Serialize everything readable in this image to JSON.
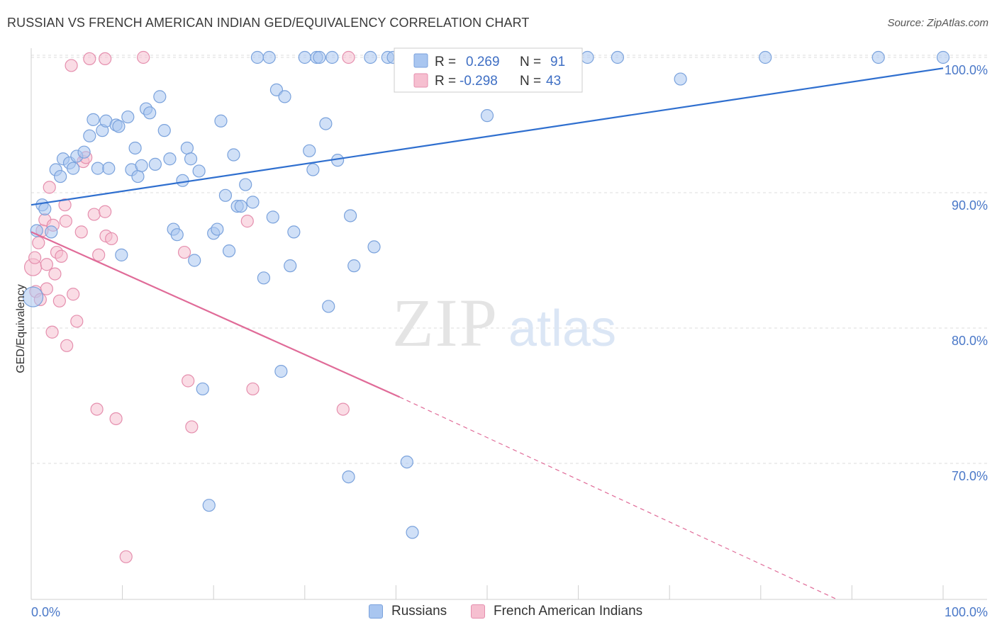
{
  "title": "RUSSIAN VS FRENCH AMERICAN INDIAN GED/EQUIVALENCY CORRELATION CHART",
  "source": "Source: ZipAtlas.com",
  "watermark": {
    "zip": "ZIP",
    "atlas": "atlas"
  },
  "colors": {
    "blue_fill": "#a9c6f0",
    "blue_stroke": "#7aa2dc",
    "blue_line": "#2f6fcf",
    "pink_fill": "#f6bfd0",
    "pink_stroke": "#e58fae",
    "pink_line": "#e06b98",
    "grid": "#dddddd",
    "axis_text": "#4a78c8"
  },
  "legend": {
    "rows": [
      {
        "r_label": "R =",
        "r_value": "0.269",
        "n_label": "N =",
        "n_value": "91"
      },
      {
        "r_label": "R =",
        "r_value": "-0.298",
        "n_label": "N =",
        "n_value": "43"
      }
    ]
  },
  "bottom_legend": [
    {
      "label": "Russians"
    },
    {
      "label": "French American Indians"
    }
  ],
  "chart_data": {
    "type": "scatter",
    "title": "RUSSIAN VS FRENCH AMERICAN INDIAN GED/EQUIVALENCY CORRELATION CHART",
    "xlabel": "",
    "ylabel": "GED/Equivalency",
    "xlim": [
      0,
      100
    ],
    "ylim": [
      59.5,
      101.5
    ],
    "x_tick_labels": [
      "0.0%",
      "100.0%"
    ],
    "y_ticks": [
      70,
      80,
      90,
      100
    ],
    "y_tick_labels": [
      "70.0%",
      "80.0%",
      "90.0%",
      "100.0%"
    ],
    "grid": true,
    "legend_position": "top-center",
    "series": [
      {
        "name": "Russians",
        "color": "#a9c6f0",
        "r": 0.269,
        "n": 91,
        "trend": {
          "x": [
            0,
            100
          ],
          "y": [
            89.1,
            99.2
          ],
          "dashed_from": null
        },
        "points": [
          [
            0.2,
            82.3
          ],
          [
            0.6,
            87.2
          ],
          [
            1.2,
            89.1
          ],
          [
            1.5,
            88.8
          ],
          [
            2.2,
            87.1
          ],
          [
            2.7,
            91.7
          ],
          [
            3.2,
            91.2
          ],
          [
            3.5,
            92.5
          ],
          [
            4.2,
            92.2
          ],
          [
            4.6,
            91.8
          ],
          [
            5.0,
            92.7
          ],
          [
            5.8,
            93.0
          ],
          [
            6.4,
            94.2
          ],
          [
            6.8,
            95.4
          ],
          [
            7.3,
            91.8
          ],
          [
            7.8,
            94.6
          ],
          [
            8.2,
            95.3
          ],
          [
            8.5,
            91.8
          ],
          [
            9.3,
            95.0
          ],
          [
            9.6,
            94.9
          ],
          [
            9.9,
            85.4
          ],
          [
            10.6,
            95.6
          ],
          [
            11.0,
            91.7
          ],
          [
            11.4,
            93.3
          ],
          [
            11.7,
            91.2
          ],
          [
            12.1,
            92.0
          ],
          [
            12.6,
            96.2
          ],
          [
            13.0,
            95.9
          ],
          [
            13.6,
            92.1
          ],
          [
            14.1,
            97.1
          ],
          [
            14.6,
            94.6
          ],
          [
            15.2,
            92.5
          ],
          [
            15.6,
            87.3
          ],
          [
            16.0,
            86.9
          ],
          [
            16.6,
            90.9
          ],
          [
            17.1,
            93.3
          ],
          [
            17.5,
            92.5
          ],
          [
            17.9,
            85.0
          ],
          [
            18.4,
            91.6
          ],
          [
            18.8,
            75.5
          ],
          [
            19.5,
            66.9
          ],
          [
            20.0,
            87.0
          ],
          [
            20.4,
            87.3
          ],
          [
            20.8,
            95.3
          ],
          [
            21.3,
            89.8
          ],
          [
            21.7,
            85.7
          ],
          [
            22.2,
            92.8
          ],
          [
            22.6,
            89.0
          ],
          [
            23.0,
            89.0
          ],
          [
            23.5,
            90.6
          ],
          [
            24.3,
            89.3
          ],
          [
            24.8,
            100.0
          ],
          [
            25.5,
            83.7
          ],
          [
            26.1,
            100.0
          ],
          [
            26.5,
            88.2
          ],
          [
            26.9,
            97.6
          ],
          [
            27.4,
            76.8
          ],
          [
            27.8,
            97.1
          ],
          [
            28.4,
            84.6
          ],
          [
            28.8,
            87.1
          ],
          [
            30.0,
            100.0
          ],
          [
            30.5,
            93.1
          ],
          [
            30.9,
            91.7
          ],
          [
            31.3,
            100.0
          ],
          [
            31.6,
            100.0
          ],
          [
            32.3,
            95.1
          ],
          [
            32.6,
            81.6
          ],
          [
            33.0,
            100.0
          ],
          [
            33.6,
            92.4
          ],
          [
            34.8,
            69.0
          ],
          [
            35.0,
            88.3
          ],
          [
            35.4,
            84.6
          ],
          [
            37.2,
            100.0
          ],
          [
            37.6,
            86.0
          ],
          [
            39.1,
            100.0
          ],
          [
            39.7,
            100.0
          ],
          [
            40.8,
            100.0
          ],
          [
            41.2,
            70.1
          ],
          [
            41.8,
            64.9
          ],
          [
            47.6,
            100.0
          ],
          [
            50.0,
            95.7
          ],
          [
            50.5,
            100.0
          ],
          [
            51.0,
            100.0
          ],
          [
            51.8,
            100.0
          ],
          [
            55.8,
            100.0
          ],
          [
            61.0,
            100.0
          ],
          [
            64.3,
            100.0
          ],
          [
            71.2,
            98.4
          ],
          [
            80.5,
            100.0
          ],
          [
            92.9,
            100.0
          ],
          [
            100.0,
            100.0
          ]
        ]
      },
      {
        "name": "French American Indians",
        "color": "#f6bfd0",
        "r": -0.298,
        "n": 43,
        "trend": {
          "x": [
            0,
            40.4,
            88.2
          ],
          "y": [
            87.1,
            74.9,
            60.0
          ],
          "dashed_from": 40.4
        },
        "points": [
          [
            0.2,
            84.5
          ],
          [
            0.4,
            85.2
          ],
          [
            0.5,
            82.7
          ],
          [
            0.8,
            86.3
          ],
          [
            1.0,
            82.1
          ],
          [
            1.2,
            87.2
          ],
          [
            1.5,
            88.0
          ],
          [
            1.7,
            82.9
          ],
          [
            1.7,
            84.7
          ],
          [
            2.0,
            90.4
          ],
          [
            2.3,
            79.7
          ],
          [
            2.4,
            87.6
          ],
          [
            2.6,
            84.0
          ],
          [
            2.8,
            85.6
          ],
          [
            3.1,
            82.0
          ],
          [
            3.3,
            85.3
          ],
          [
            3.7,
            89.1
          ],
          [
            3.8,
            87.9
          ],
          [
            3.9,
            78.7
          ],
          [
            4.4,
            99.4
          ],
          [
            4.6,
            82.5
          ],
          [
            5.0,
            80.5
          ],
          [
            5.5,
            87.1
          ],
          [
            5.7,
            92.3
          ],
          [
            6.0,
            92.6
          ],
          [
            6.4,
            99.9
          ],
          [
            6.9,
            88.4
          ],
          [
            7.2,
            74.0
          ],
          [
            7.4,
            85.4
          ],
          [
            8.1,
            99.9
          ],
          [
            8.1,
            88.6
          ],
          [
            8.2,
            86.8
          ],
          [
            8.8,
            86.6
          ],
          [
            9.3,
            73.3
          ],
          [
            10.4,
            63.1
          ],
          [
            12.3,
            100.0
          ],
          [
            16.8,
            85.6
          ],
          [
            17.2,
            76.1
          ],
          [
            17.6,
            72.7
          ],
          [
            23.7,
            87.9
          ],
          [
            24.3,
            75.5
          ],
          [
            34.2,
            74.0
          ],
          [
            34.8,
            100.0
          ]
        ]
      }
    ]
  }
}
